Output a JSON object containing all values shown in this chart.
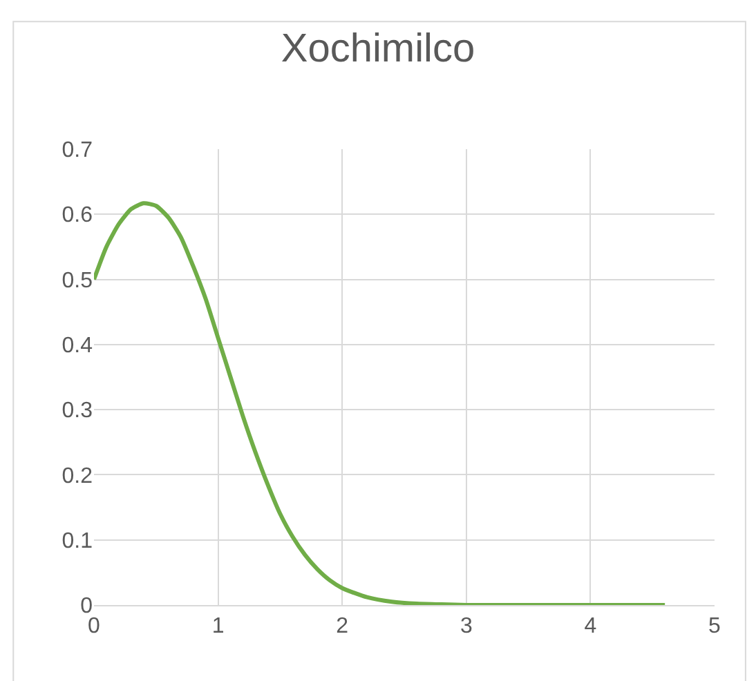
{
  "chart_data": {
    "type": "line",
    "title": "Xochimilco",
    "x": [
      0,
      0.1,
      0.2,
      0.3,
      0.4,
      0.5,
      0.6,
      0.7,
      0.8,
      0.9,
      1.0,
      1.1,
      1.2,
      1.3,
      1.4,
      1.5,
      1.6,
      1.7,
      1.8,
      1.9,
      2.0,
      2.2,
      2.4,
      2.6,
      2.8,
      3.0,
      3.5,
      4.0,
      4.6
    ],
    "series": [
      {
        "color": "#70ad47",
        "values": [
          0.5,
          0.55,
          0.585,
          0.608,
          0.617,
          0.613,
          0.595,
          0.565,
          0.52,
          0.47,
          0.41,
          0.35,
          0.29,
          0.235,
          0.185,
          0.14,
          0.105,
          0.077,
          0.055,
          0.038,
          0.026,
          0.012,
          0.005,
          0.002,
          0.001,
          0,
          0,
          0,
          0
        ]
      }
    ],
    "xlim": [
      0,
      5
    ],
    "xticks": [
      0,
      1,
      2,
      3,
      4,
      5
    ],
    "ylim": [
      0,
      0.7
    ],
    "yticks": [
      0,
      0.1,
      0.2,
      0.3,
      0.4,
      0.5,
      0.6,
      0.7
    ],
    "grid": true,
    "legend": false,
    "marker": "none",
    "line_style": "solid"
  }
}
